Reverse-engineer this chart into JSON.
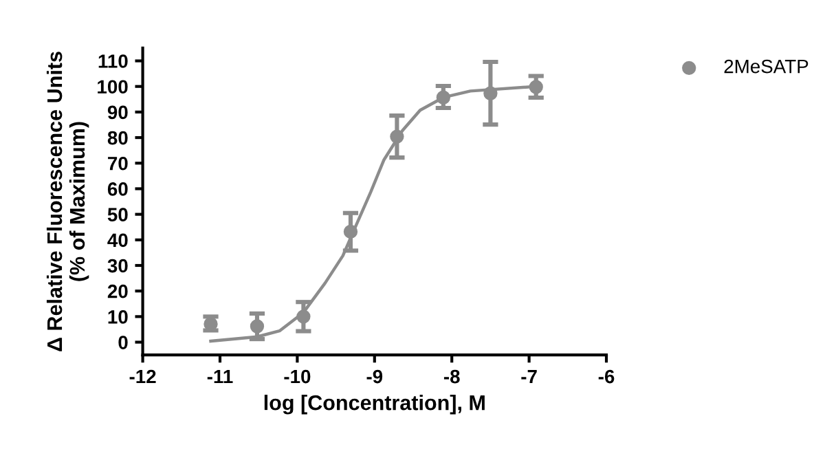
{
  "chart_data": {
    "type": "scatter",
    "xlabel": "log [Concentration], M",
    "ylabel": "Δ Relative Fluorescence Units\n(% of Maximum)",
    "xlim": [
      -12,
      -6
    ],
    "xticks": [
      -12,
      -11,
      -10,
      -9,
      -8,
      -7,
      -6
    ],
    "ylim": [
      -5,
      115
    ],
    "yticks": [
      0,
      10,
      20,
      30,
      40,
      50,
      60,
      70,
      80,
      90,
      100,
      110
    ],
    "grid": false,
    "legend": "top right",
    "series": [
      {
        "name": "2MeSATP",
        "marker": "circle",
        "color": "#8c8c8c",
        "x": [
          -11.12,
          -10.52,
          -9.92,
          -9.31,
          -8.71,
          -8.11,
          -7.5,
          -6.91
        ],
        "values": [
          7.1,
          6.2,
          10,
          43.2,
          80.4,
          95.7,
          97.3,
          99.8
        ],
        "errors": [
          [
            4.6,
            10
          ],
          [
            1.2,
            11.2
          ],
          [
            4.3,
            15.7
          ],
          [
            35.8,
            50.5
          ],
          [
            72.2,
            88.6
          ],
          [
            91.6,
            100.2
          ],
          [
            85.1,
            109.6
          ],
          [
            95.6,
            104.1
          ]
        ]
      },
      {
        "type": "line",
        "color": "#8c8c8c",
        "line_style": "solid",
        "x": [
          -11.12,
          -10.52,
          -10.23,
          -9.92,
          -9.64,
          -9.41,
          -9.23,
          -9.05,
          -8.88,
          -8.64,
          -8.41,
          -8.11,
          -7.76,
          -6.91
        ],
        "values": [
          0.4,
          2.1,
          4.4,
          11.6,
          23.1,
          33.8,
          46.3,
          58.7,
          71.2,
          82.7,
          90.7,
          95.7,
          98.2,
          100
        ]
      }
    ]
  }
}
